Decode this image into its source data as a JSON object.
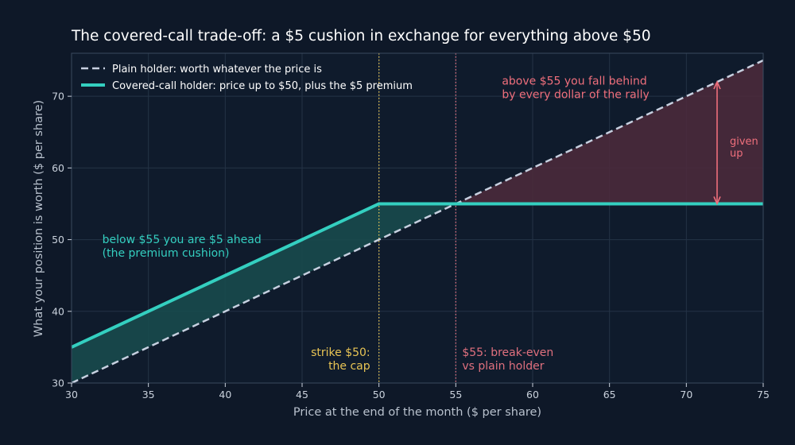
{
  "colors": {
    "background": "#0e1828",
    "plot_bg": "#0f1b2c",
    "grid": "#243346",
    "spine": "#3a4a5e",
    "plain": "#c7d0e0",
    "covered": "#34cfc0",
    "cushion_fill": "#184a4d",
    "given_fill": "#4a2a3b",
    "strike": "#e8c454",
    "breakeven": "#e0707e",
    "given": "#ef6f7c"
  },
  "chart_data": {
    "type": "line",
    "title": "The covered-call trade-off: a $5 cushion in exchange for everything above $50",
    "xlabel": "Price at the end of the month ($ per share)",
    "ylabel": "What your position is worth ($ per share)",
    "xlim": [
      30,
      75
    ],
    "ylim": [
      30,
      76
    ],
    "xticks": [
      30,
      35,
      40,
      45,
      50,
      55,
      60,
      65,
      70,
      75
    ],
    "yticks": [
      30,
      40,
      50,
      60,
      70
    ],
    "grid": true,
    "legend_position": "top-left",
    "series": [
      {
        "name": "Plain holder: worth whatever the price is",
        "style": "dashed",
        "x": [
          30,
          75
        ],
        "y": [
          30,
          75
        ]
      },
      {
        "name": "Covered-call holder: price up to $50, plus the $5 premium",
        "style": "solid",
        "x": [
          30,
          50,
          75
        ],
        "y": [
          35,
          55,
          55
        ]
      }
    ],
    "strike": 50,
    "premium": 5,
    "breakeven": 55,
    "vlines": [
      {
        "x": 50,
        "label_lines": [
          "strike $50:",
          "the cap"
        ]
      },
      {
        "x": 55,
        "label_lines": [
          "$55: break-even",
          "vs plain holder"
        ]
      }
    ],
    "annotations": {
      "cushion": {
        "lines": [
          "below $55 you are $5 ahead",
          "(the premium cushion)"
        ],
        "x": 32,
        "y": 49.5
      },
      "given": {
        "lines": [
          "above $55 you fall behind",
          "by every dollar of the rally"
        ],
        "x": 58,
        "y": 71.6
      },
      "arrow": {
        "x": 72,
        "y_from": 72,
        "y_to": 55,
        "label_lines": [
          "given",
          "up"
        ]
      }
    }
  }
}
